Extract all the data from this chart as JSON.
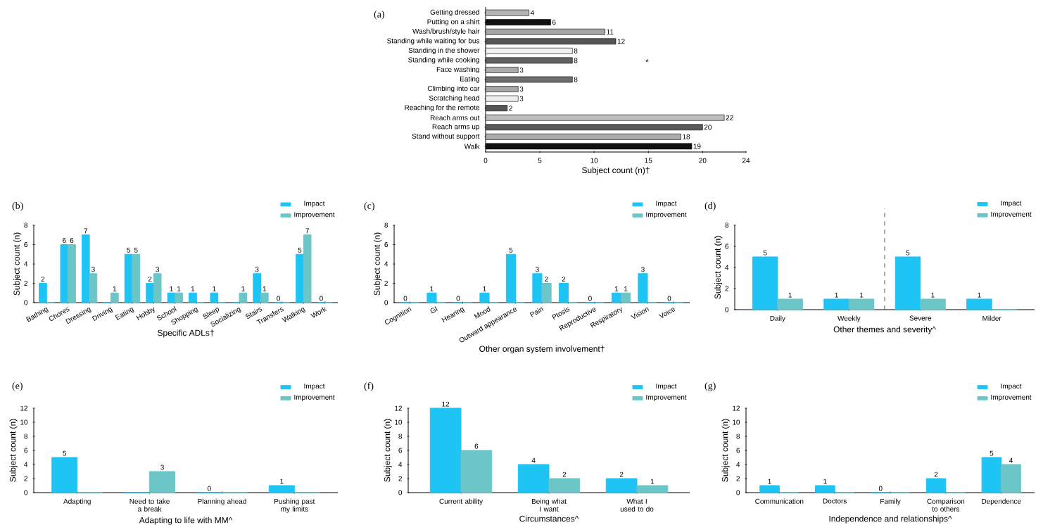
{
  "chart_data": [
    {
      "type": "bar",
      "title": "(a)",
      "orientation": "horizontal",
      "categories": [
        "Getting dressed",
        "Putting on a shirt",
        "Wash/brush/style hair",
        "Standing while waiting for bus",
        "Standing in the shower",
        "Standing while cooking",
        "Face washing",
        "Eating",
        "Climbing into car",
        "Scratching head",
        "Reaching for the remote",
        "Reach arms out",
        "Reach arms up",
        "Stand without support",
        "Walk"
      ],
      "values": [
        4,
        6,
        11,
        12,
        8,
        8,
        3,
        8,
        3,
        3,
        2,
        22,
        20,
        18,
        19
      ],
      "colors": [
        "#b4b4b4",
        "#111111",
        "#a6a6a6",
        "#555555",
        "#f2f2f2",
        "#616161",
        "#ababab",
        "#6e6e6e",
        "#a8a8a8",
        "#eeeeee",
        "#575757",
        "#bdbdbd",
        "#5a5a5a",
        "#acacac",
        "#111111"
      ],
      "xlim": [
        0,
        24
      ],
      "xticks": [
        0,
        5,
        10,
        15,
        20,
        24
      ],
      "xlabel": "Subject count (n)†",
      "data_labels": true,
      "annotations": [
        "*"
      ]
    },
    {
      "type": "bar",
      "title": "(b)",
      "categories": [
        "Bathing",
        "Chores",
        "Dressing",
        "Driving",
        "Eating",
        "Hobby",
        "School",
        "Shopping",
        "Sleep",
        "Socializing",
        "Stairs",
        "Transfers",
        "Walking",
        "Work"
      ],
      "series": [
        {
          "name": "Impact",
          "color": "#1ec4f4",
          "values": [
            2,
            6,
            7,
            0,
            5,
            2,
            1,
            1,
            1,
            0,
            3,
            0,
            5,
            0
          ],
          "value_labels": [
            "2",
            "6",
            "7",
            null,
            "5",
            "2",
            "1",
            "1",
            "1",
            null,
            "3",
            "0",
            "5",
            "0"
          ]
        },
        {
          "name": "Improvement",
          "color": "#6cc6c8",
          "values": [
            0,
            6,
            3,
            1,
            5,
            3,
            1,
            0,
            0,
            1,
            1,
            0,
            7,
            0
          ],
          "value_labels": [
            null,
            "6",
            "3",
            "1",
            "5",
            "3",
            "1",
            null,
            null,
            "1",
            "1",
            null,
            "7",
            null
          ]
        }
      ],
      "ylim": [
        0,
        8
      ],
      "yticks": [
        0,
        2,
        4,
        6,
        8
      ],
      "xlabel": "Specific ADLs†",
      "ylabel": "Subject count (n)",
      "legend": "top right"
    },
    {
      "type": "bar",
      "title": "(c)",
      "categories": [
        "Cognition",
        "GI",
        "Hearing",
        "Mood",
        "Outward appearance",
        "Pain",
        "Ptosis",
        "Reproductive",
        "Respiratory",
        "Vision",
        "Voice"
      ],
      "series": [
        {
          "name": "Impact",
          "color": "#1ec4f4",
          "values": [
            0,
            1,
            0,
            1,
            5,
            3,
            2,
            0,
            1,
            3,
            0
          ],
          "value_labels": [
            "0",
            "1",
            "0",
            "1",
            "5",
            "3",
            "2",
            "0",
            "1",
            "3",
            "0"
          ]
        },
        {
          "name": "Improvement",
          "color": "#6cc6c8",
          "values": [
            0,
            0,
            0,
            0,
            0,
            2,
            0,
            0,
            1,
            0,
            0
          ],
          "value_labels": [
            null,
            null,
            null,
            null,
            null,
            "2",
            null,
            null,
            "1",
            null,
            null
          ]
        }
      ],
      "ylim": [
        0,
        8
      ],
      "yticks": [
        0,
        2,
        4,
        6,
        8
      ],
      "xlabel": "Other organ system involvement†",
      "ylabel": "Subject count (n)",
      "legend": "top right"
    },
    {
      "type": "bar",
      "title": "(d)",
      "categories": [
        "Daily",
        "Weekly",
        "Severe",
        "Milder"
      ],
      "series": [
        {
          "name": "Impact",
          "color": "#1ec4f4",
          "values": [
            5,
            1,
            5,
            1
          ],
          "value_labels": [
            "5",
            "1",
            "5",
            "1"
          ]
        },
        {
          "name": "Improvement",
          "color": "#6cc6c8",
          "values": [
            1,
            1,
            1,
            0
          ],
          "value_labels": [
            "1",
            "1",
            "1",
            null
          ]
        }
      ],
      "ylim": [
        0,
        8
      ],
      "yticks": [
        0,
        2,
        4,
        6,
        8
      ],
      "xlabel": "Other themes and severity^",
      "ylabel": "Subject count (n)",
      "legend": "top right"
    },
    {
      "type": "bar",
      "title": "(e)",
      "categories": [
        "Adapting",
        "Need to take a break",
        "Planning ahead",
        "Pushing past my limits"
      ],
      "series": [
        {
          "name": "Impact",
          "color": "#1ec4f4",
          "values": [
            5,
            0,
            0,
            1
          ],
          "value_labels": [
            "5",
            null,
            "0",
            "1"
          ]
        },
        {
          "name": "Improvement",
          "color": "#6cc6c8",
          "values": [
            0,
            3,
            0,
            0
          ],
          "value_labels": [
            null,
            "3",
            null,
            null
          ]
        }
      ],
      "ylim": [
        0,
        12
      ],
      "yticks": [
        0,
        2,
        4,
        6,
        8,
        10,
        12
      ],
      "xlabel": "Adapting to life with MM^",
      "ylabel": "Subject count (n)",
      "legend": "top right"
    },
    {
      "type": "bar",
      "title": "(f)",
      "categories": [
        "Current ability",
        "Being what I want",
        "What I used to do"
      ],
      "series": [
        {
          "name": "Impact",
          "color": "#1ec4f4",
          "values": [
            12,
            4,
            2
          ],
          "value_labels": [
            "12",
            "4",
            "2"
          ]
        },
        {
          "name": "Improvement",
          "color": "#6cc6c8",
          "values": [
            6,
            2,
            1
          ],
          "value_labels": [
            "6",
            "2",
            "1"
          ]
        }
      ],
      "ylim": [
        0,
        12
      ],
      "yticks": [
        0,
        2,
        4,
        6,
        8,
        10,
        12
      ],
      "xlabel": "Circumstances^",
      "ylabel": "Subject count (n)",
      "legend": "top right"
    },
    {
      "type": "bar",
      "title": "(g)",
      "categories": [
        "Communication",
        "Doctors",
        "Family",
        "Comparison to others",
        "Dependence"
      ],
      "series": [
        {
          "name": "Impact",
          "color": "#1ec4f4",
          "values": [
            1,
            1,
            0,
            2,
            5
          ],
          "value_labels": [
            "1",
            "1",
            "0",
            "2",
            "5"
          ]
        },
        {
          "name": "Improvement",
          "color": "#6cc6c8",
          "values": [
            0,
            0,
            0,
            0,
            4
          ],
          "value_labels": [
            null,
            null,
            null,
            null,
            "4"
          ]
        }
      ],
      "ylim": [
        0,
        12
      ],
      "yticks": [
        0,
        2,
        4,
        6,
        8,
        10,
        12
      ],
      "xlabel": "Independence and relationships^",
      "ylabel": "Subject count (n)",
      "legend": "top right"
    }
  ]
}
